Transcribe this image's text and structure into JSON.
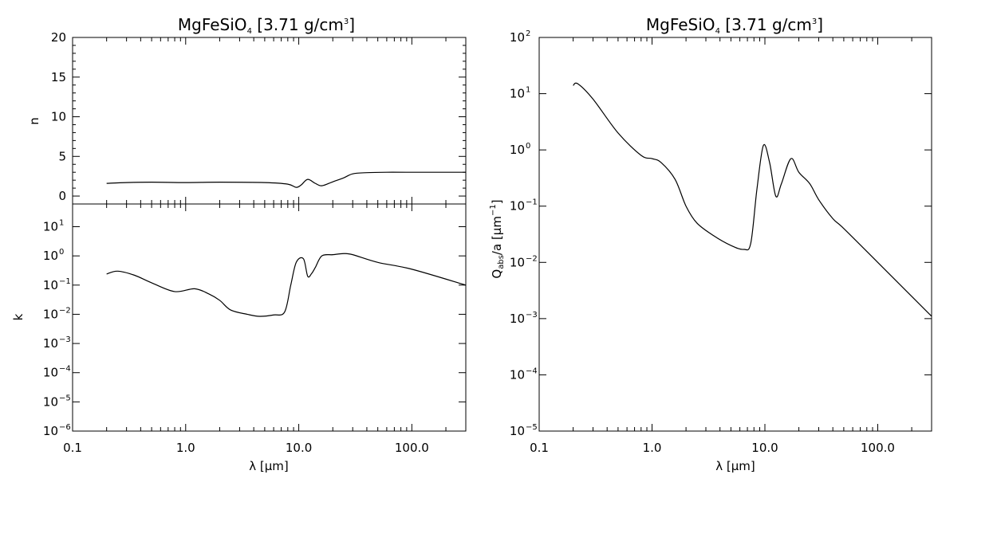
{
  "chart_data": [
    {
      "type": "line",
      "panel": "top-left",
      "title": "MgFeSiO",
      "title_sub": "4",
      "title_rest": " [3.71 g/cm",
      "title_sup": "3",
      "title_end": "]",
      "ylabel": "n",
      "xscale": "log",
      "xlim": [
        0.1,
        300
      ],
      "ylim": [
        -1,
        20
      ],
      "yticks": [
        0,
        5,
        10,
        15,
        20
      ],
      "ytick_labels": [
        "0",
        "5",
        "10",
        "15",
        "20"
      ],
      "x": [
        0.2,
        0.3,
        0.5,
        1.0,
        2.0,
        5.0,
        8.0,
        9.5,
        10.5,
        12.0,
        14.0,
        16.0,
        20.0,
        25.0,
        30.0,
        40.0,
        60.0,
        100.0,
        300.0
      ],
      "y": [
        1.6,
        1.7,
        1.75,
        1.7,
        1.75,
        1.7,
        1.5,
        1.1,
        1.4,
        2.1,
        1.6,
        1.3,
        1.8,
        2.3,
        2.8,
        2.95,
        3.0,
        3.0,
        3.0
      ]
    },
    {
      "type": "line",
      "panel": "bottom-left",
      "ylabel": "k",
      "xlabel": "λ [μm]",
      "xscale": "log",
      "yscale": "log",
      "xlim": [
        0.1,
        300
      ],
      "ylim": [
        1e-06,
        60
      ],
      "xticks": [
        0.1,
        1.0,
        10.0,
        100.0
      ],
      "xtick_labels": [
        "0.1",
        "1.0",
        "10.0",
        "100.0"
      ],
      "yticks": [
        1e-06,
        1e-05,
        0.0001,
        0.001,
        0.01,
        0.1,
        1,
        10
      ],
      "ytick_exps": [
        "-6",
        "-5",
        "-4",
        "-3",
        "-2",
        "-1",
        "0",
        "1"
      ],
      "x": [
        0.2,
        0.25,
        0.35,
        0.5,
        0.8,
        1.2,
        1.6,
        2.0,
        2.5,
        3.5,
        4.5,
        6.0,
        7.5,
        8.5,
        9.5,
        11.0,
        12.0,
        13.0,
        14.0,
        16.0,
        20.0,
        25.0,
        30.0,
        50.0,
        100.0,
        300.0
      ],
      "y": [
        0.24,
        0.3,
        0.22,
        0.12,
        0.06,
        0.075,
        0.05,
        0.03,
        0.014,
        0.01,
        0.0085,
        0.0095,
        0.012,
        0.1,
        0.6,
        0.8,
        0.2,
        0.25,
        0.4,
        1.0,
        1.1,
        1.2,
        1.1,
        0.6,
        0.35,
        0.1
      ]
    },
    {
      "type": "line",
      "panel": "right",
      "title": "MgFeSiO",
      "title_sub": "4",
      "title_rest": " [3.71 g/cm",
      "title_sup": "3",
      "title_end": "]",
      "ylabel_main": "Q",
      "ylabel_sub": "abs",
      "ylabel_mid": "/a [μm",
      "ylabel_sup": "−1",
      "ylabel_end": "]",
      "xlabel": "λ [μm]",
      "xscale": "log",
      "yscale": "log",
      "xlim": [
        0.1,
        300
      ],
      "ylim": [
        1e-05,
        100
      ],
      "xticks": [
        0.1,
        1.0,
        10.0,
        100.0
      ],
      "xtick_labels": [
        "0.1",
        "1.0",
        "10.0",
        "100.0"
      ],
      "yticks": [
        1e-05,
        0.0001,
        0.001,
        0.01,
        0.1,
        1,
        10,
        100
      ],
      "ytick_exps": [
        "-5",
        "-4",
        "-3",
        "-2",
        "-1",
        "0",
        "1",
        "2"
      ],
      "x": [
        0.2,
        0.22,
        0.3,
        0.5,
        0.8,
        1.0,
        1.2,
        1.6,
        2.0,
        2.5,
        3.5,
        5.0,
        6.5,
        7.5,
        8.5,
        9.7,
        11.0,
        12.5,
        14.0,
        17.0,
        20.0,
        25.0,
        30.0,
        40.0,
        50.0,
        100.0,
        300.0
      ],
      "y": [
        14,
        15,
        8,
        2,
        0.8,
        0.7,
        0.6,
        0.3,
        0.1,
        0.05,
        0.03,
        0.02,
        0.017,
        0.022,
        0.2,
        1.2,
        0.6,
        0.15,
        0.25,
        0.7,
        0.4,
        0.25,
        0.13,
        0.06,
        0.04,
        0.01,
        0.0011
      ]
    }
  ]
}
